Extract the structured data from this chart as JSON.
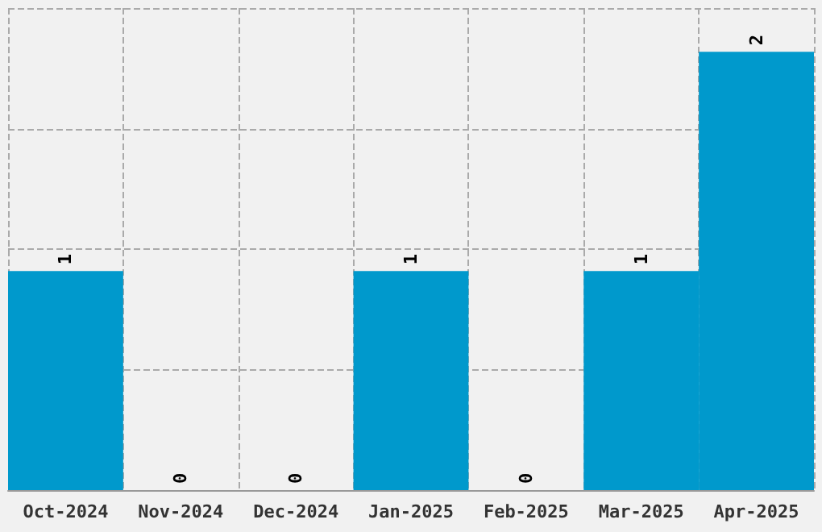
{
  "chart_data": {
    "type": "bar",
    "categories": [
      "Oct-2024",
      "Nov-2024",
      "Dec-2024",
      "Jan-2025",
      "Feb-2025",
      "Mar-2025",
      "Apr-2025"
    ],
    "values": [
      1,
      0,
      0,
      1,
      0,
      1,
      2
    ],
    "color": "#0099cc",
    "ylim": [
      0,
      2.2
    ],
    "yticks": [
      {
        "value": 0,
        "label": null
      },
      {
        "value": 0.55,
        "label": null
      },
      {
        "value": 1.1,
        "label": null
      },
      {
        "value": 1.65,
        "label": null
      },
      {
        "value": 2.2,
        "label": null
      }
    ],
    "grid": true,
    "data_labels": true,
    "tick_labels": "x"
  }
}
